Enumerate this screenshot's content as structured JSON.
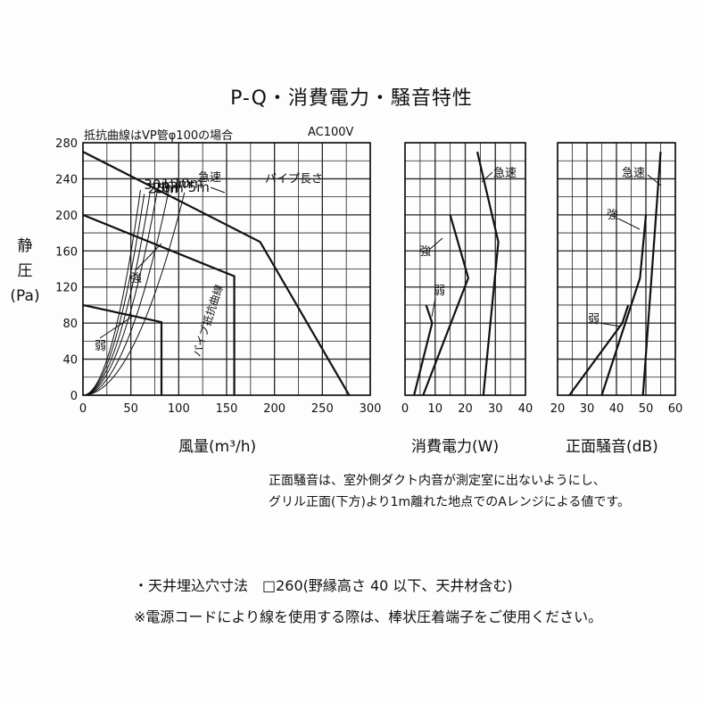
{
  "title": "P-Q・消費電力・騒音特性",
  "notes": {
    "resistance": "抵抗曲線はVP管φ100の場合",
    "voltage": "AC100V"
  },
  "y_axis_label": [
    "静",
    "圧",
    "(Pa)"
  ],
  "x_axis_labels": {
    "airflow": "風量(m³/h)",
    "power": "消費電力(W)",
    "noise": "正面騒音(dB)"
  },
  "footnote": [
    "正面騒音は、室外側ダクト内音が測定室に出ないようにし、",
    "グリル正面(下方)より1m離れた地点でのAレンジによる値です。"
  ],
  "specs": [
    "・天井埋込穴寸法　□260(野縁高さ 40 以下、天井材含む)",
    "※電源コードにより線を使用する際は、棒状圧着端子をご使用ください。"
  ],
  "chart_data": [
    {
      "id": "pq",
      "type": "line",
      "xlabel": "風量(m³/h)",
      "ylabel": "静圧(Pa)",
      "xlim": [
        0,
        300
      ],
      "ylim": [
        0,
        280
      ],
      "xticks": [
        0,
        50,
        100,
        150,
        200,
        250,
        300
      ],
      "yticks": [
        0,
        40,
        80,
        120,
        160,
        200,
        240,
        280
      ],
      "series": [
        {
          "name": "急速",
          "points": [
            [
              0,
              270
            ],
            [
              185,
              170
            ],
            [
              278,
              0
            ]
          ]
        },
        {
          "name": "強",
          "points": [
            [
              0,
              200
            ],
            [
              158,
              132
            ],
            [
              158,
              0
            ]
          ]
        },
        {
          "name": "弱",
          "points": [
            [
              0,
              100
            ],
            [
              82,
              81
            ],
            [
              82,
              0
            ]
          ]
        }
      ],
      "resistance_curves": [
        {
          "name": "5m",
          "k": 0.02
        },
        {
          "name": "10m",
          "k": 0.0283
        },
        {
          "name": "15m",
          "k": 0.0376
        },
        {
          "name": "20m",
          "k": 0.0457
        },
        {
          "name": "25m",
          "k": 0.0545
        },
        {
          "name": "30m",
          "k": 0.0632
        }
      ],
      "resistance_label": "パイプ長さ",
      "pipe_label": "パイプ抵抗曲線"
    },
    {
      "id": "power",
      "type": "line",
      "xlabel": "消費電力(W)",
      "xlim": [
        0,
        40
      ],
      "ylim": [
        0,
        280
      ],
      "xticks": [
        0,
        10,
        20,
        30,
        40
      ],
      "series": [
        {
          "name": "急速",
          "points": [
            [
              26,
              0
            ],
            [
              31,
              170
            ],
            [
              24,
              270
            ]
          ]
        },
        {
          "name": "強",
          "points": [
            [
              6,
              0
            ],
            [
              21,
              130
            ],
            [
              15,
              200
            ]
          ]
        },
        {
          "name": "弱",
          "points": [
            [
              3,
              0
            ],
            [
              9,
              80
            ],
            [
              7,
              100
            ]
          ]
        }
      ]
    },
    {
      "id": "noise",
      "type": "line",
      "xlabel": "正面騒音(dB)",
      "xlim": [
        20,
        60
      ],
      "ylim": [
        0,
        280
      ],
      "xticks": [
        20,
        30,
        40,
        50,
        60
      ],
      "series": [
        {
          "name": "急速",
          "points": [
            [
              49,
              0
            ],
            [
              55,
              270
            ]
          ]
        },
        {
          "name": "強",
          "points": [
            [
              35,
              0
            ],
            [
              48,
              130
            ],
            [
              50,
              200
            ]
          ]
        },
        {
          "name": "弱",
          "points": [
            [
              24,
              0
            ],
            [
              42,
              80
            ],
            [
              44,
              100
            ]
          ]
        }
      ]
    }
  ]
}
